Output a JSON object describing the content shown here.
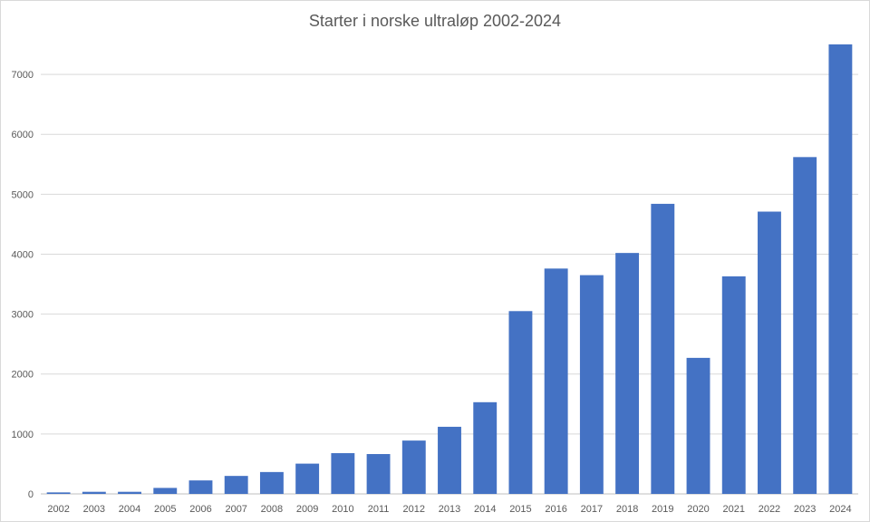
{
  "chart_data": {
    "type": "bar",
    "title": "Starter i norske ultraløp 2002-2024",
    "xlabel": "",
    "ylabel": "",
    "categories": [
      "2002",
      "2003",
      "2004",
      "2005",
      "2006",
      "2007",
      "2008",
      "2009",
      "2010",
      "2011",
      "2012",
      "2013",
      "2014",
      "2015",
      "2016",
      "2017",
      "2018",
      "2019",
      "2020",
      "2021",
      "2022",
      "2023",
      "2024"
    ],
    "values": [
      25,
      35,
      35,
      100,
      225,
      300,
      365,
      505,
      680,
      665,
      890,
      1120,
      1530,
      3050,
      3760,
      3650,
      4020,
      4840,
      2270,
      3630,
      4710,
      5620,
      7500
    ],
    "ylim": [
      0,
      7500
    ],
    "yticks": [
      0,
      1000,
      2000,
      3000,
      4000,
      5000,
      6000,
      7000
    ],
    "ytick_labels": [
      "0",
      "1000",
      "2000",
      "3000",
      "4000",
      "5000",
      "6000",
      "7000"
    ],
    "grid": true,
    "legend": "none",
    "bar_color": "#4472c4"
  }
}
